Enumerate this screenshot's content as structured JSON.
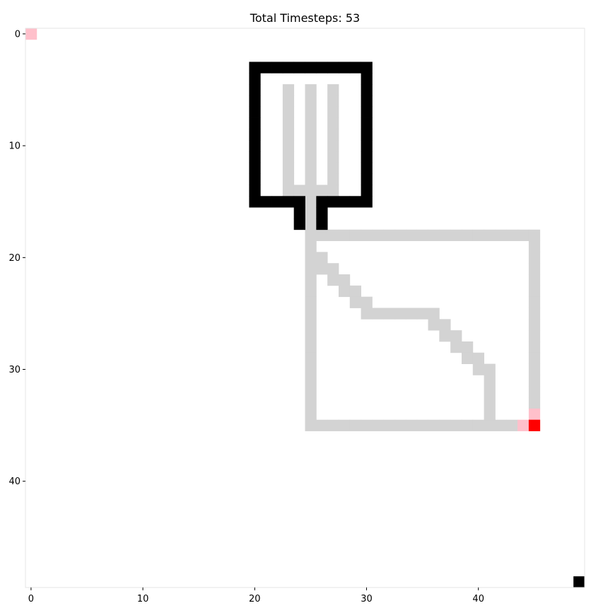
{
  "title": "Total Timesteps: 53",
  "grid": {
    "rows": 50,
    "cols": 50,
    "x_ticks": [
      0,
      10,
      20,
      30,
      40
    ],
    "y_ticks": [
      0,
      10,
      20,
      30,
      40
    ],
    "colors": {
      "background": "#ffffff",
      "wall": "#000000",
      "trail": "#d3d3d3",
      "agent": "#ff0000",
      "agent_trace": "#ffc0cb",
      "spine": "#e6e6e6"
    }
  },
  "cells": {
    "wall": [
      [
        3,
        20
      ],
      [
        3,
        21
      ],
      [
        3,
        22
      ],
      [
        3,
        23
      ],
      [
        3,
        24
      ],
      [
        3,
        25
      ],
      [
        3,
        26
      ],
      [
        3,
        27
      ],
      [
        3,
        28
      ],
      [
        3,
        29
      ],
      [
        3,
        30
      ],
      [
        4,
        20
      ],
      [
        4,
        30
      ],
      [
        5,
        20
      ],
      [
        5,
        30
      ],
      [
        6,
        20
      ],
      [
        6,
        30
      ],
      [
        7,
        20
      ],
      [
        7,
        30
      ],
      [
        8,
        20
      ],
      [
        8,
        30
      ],
      [
        9,
        20
      ],
      [
        9,
        30
      ],
      [
        10,
        20
      ],
      [
        10,
        30
      ],
      [
        11,
        20
      ],
      [
        11,
        30
      ],
      [
        12,
        20
      ],
      [
        12,
        30
      ],
      [
        13,
        20
      ],
      [
        13,
        30
      ],
      [
        14,
        20
      ],
      [
        14,
        30
      ],
      [
        15,
        20
      ],
      [
        15,
        21
      ],
      [
        15,
        22
      ],
      [
        15,
        23
      ],
      [
        15,
        24
      ],
      [
        15,
        26
      ],
      [
        15,
        27
      ],
      [
        15,
        28
      ],
      [
        15,
        29
      ],
      [
        15,
        30
      ],
      [
        16,
        24
      ],
      [
        16,
        26
      ],
      [
        17,
        24
      ],
      [
        17,
        26
      ],
      [
        49,
        49
      ]
    ],
    "trail": [
      [
        5,
        23
      ],
      [
        6,
        23
      ],
      [
        7,
        23
      ],
      [
        8,
        23
      ],
      [
        9,
        23
      ],
      [
        10,
        23
      ],
      [
        11,
        23
      ],
      [
        12,
        23
      ],
      [
        13,
        23
      ],
      [
        14,
        23
      ],
      [
        5,
        25
      ],
      [
        6,
        25
      ],
      [
        7,
        25
      ],
      [
        8,
        25
      ],
      [
        9,
        25
      ],
      [
        10,
        25
      ],
      [
        11,
        25
      ],
      [
        12,
        25
      ],
      [
        13,
        25
      ],
      [
        14,
        25
      ],
      [
        5,
        27
      ],
      [
        6,
        27
      ],
      [
        7,
        27
      ],
      [
        8,
        27
      ],
      [
        9,
        27
      ],
      [
        10,
        27
      ],
      [
        11,
        27
      ],
      [
        12,
        27
      ],
      [
        13,
        27
      ],
      [
        14,
        27
      ],
      [
        14,
        24
      ],
      [
        14,
        26
      ],
      [
        15,
        25
      ],
      [
        16,
        25
      ],
      [
        17,
        25
      ],
      [
        18,
        25
      ],
      [
        18,
        26
      ],
      [
        18,
        27
      ],
      [
        18,
        28
      ],
      [
        18,
        29
      ],
      [
        18,
        30
      ],
      [
        18,
        31
      ],
      [
        18,
        32
      ],
      [
        18,
        33
      ],
      [
        18,
        34
      ],
      [
        18,
        35
      ],
      [
        18,
        36
      ],
      [
        18,
        37
      ],
      [
        18,
        38
      ],
      [
        18,
        39
      ],
      [
        18,
        40
      ],
      [
        18,
        41
      ],
      [
        18,
        42
      ],
      [
        18,
        43
      ],
      [
        18,
        44
      ],
      [
        18,
        45
      ],
      [
        19,
        25
      ],
      [
        20,
        25
      ],
      [
        21,
        25
      ],
      [
        22,
        25
      ],
      [
        23,
        25
      ],
      [
        24,
        25
      ],
      [
        25,
        25
      ],
      [
        26,
        25
      ],
      [
        27,
        25
      ],
      [
        28,
        25
      ],
      [
        29,
        25
      ],
      [
        30,
        25
      ],
      [
        31,
        25
      ],
      [
        32,
        25
      ],
      [
        33,
        25
      ],
      [
        34,
        25
      ],
      [
        35,
        25
      ],
      [
        19,
        45
      ],
      [
        20,
        45
      ],
      [
        21,
        45
      ],
      [
        22,
        45
      ],
      [
        23,
        45
      ],
      [
        24,
        45
      ],
      [
        25,
        45
      ],
      [
        26,
        45
      ],
      [
        27,
        45
      ],
      [
        28,
        45
      ],
      [
        29,
        45
      ],
      [
        30,
        45
      ],
      [
        31,
        45
      ],
      [
        32,
        45
      ],
      [
        33,
        45
      ],
      [
        35,
        26
      ],
      [
        35,
        27
      ],
      [
        35,
        28
      ],
      [
        35,
        29
      ],
      [
        35,
        30
      ],
      [
        35,
        31
      ],
      [
        35,
        32
      ],
      [
        35,
        33
      ],
      [
        35,
        34
      ],
      [
        35,
        35
      ],
      [
        35,
        36
      ],
      [
        35,
        37
      ],
      [
        35,
        38
      ],
      [
        35,
        39
      ],
      [
        35,
        40
      ],
      [
        35,
        41
      ],
      [
        35,
        42
      ],
      [
        35,
        43
      ],
      [
        20,
        26
      ],
      [
        21,
        26
      ],
      [
        21,
        27
      ],
      [
        22,
        27
      ],
      [
        22,
        28
      ],
      [
        23,
        28
      ],
      [
        23,
        29
      ],
      [
        24,
        29
      ],
      [
        24,
        30
      ],
      [
        25,
        30
      ],
      [
        25,
        31
      ],
      [
        25,
        32
      ],
      [
        25,
        33
      ],
      [
        25,
        34
      ],
      [
        25,
        35
      ],
      [
        25,
        36
      ],
      [
        26,
        36
      ],
      [
        26,
        37
      ],
      [
        27,
        37
      ],
      [
        27,
        38
      ],
      [
        28,
        38
      ],
      [
        28,
        39
      ],
      [
        29,
        39
      ],
      [
        29,
        40
      ],
      [
        30,
        40
      ],
      [
        30,
        41
      ],
      [
        31,
        41
      ],
      [
        32,
        41
      ],
      [
        33,
        41
      ],
      [
        34,
        41
      ]
    ],
    "agent_trace": [
      [
        0,
        0
      ],
      [
        34,
        45
      ],
      [
        35,
        44
      ]
    ],
    "agent": [
      [
        35,
        45
      ]
    ]
  }
}
